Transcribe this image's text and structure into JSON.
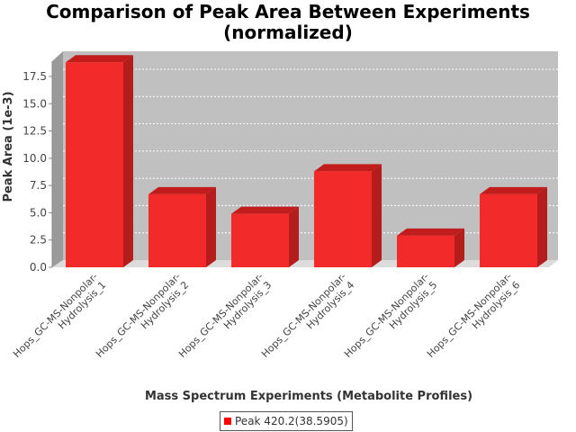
{
  "chart_data": {
    "type": "bar",
    "title_line1": "Comparison of Peak Area Between Experiments",
    "title_line2": "(normalized)",
    "xlabel": "Mass Spectrum Experiments (Metabolite Profiles)",
    "ylabel": "Peak Area (1e-3)",
    "categories": [
      [
        "Hops_GC-MS-Nonpolar-",
        "Hydrolysis_1"
      ],
      [
        "Hops_GC-MS-Nonpolar-",
        "Hydrolysis_2"
      ],
      [
        "Hops_GC-MS-Nonpolar-",
        "Hydrolysis_3"
      ],
      [
        "Hops_GC-MS-Nonpolar-",
        "Hydrolysis_4"
      ],
      [
        "Hops_GC-MS-Nonpolar-",
        "Hydrolysis_5"
      ],
      [
        "Hops_GC-MS-Nonpolar-",
        "Hydrolysis_6"
      ]
    ],
    "series": [
      {
        "name": "Peak 420.2(38.5905)",
        "values": [
          18.8,
          6.7,
          4.9,
          8.8,
          2.9,
          6.7
        ]
      }
    ],
    "ylim": [
      0,
      18.9
    ],
    "yticks": [
      "0.0",
      "2.5",
      "5.0",
      "7.5",
      "10.0",
      "12.5",
      "15.0",
      "17.5"
    ],
    "colors": {
      "bar_front": "#f32a2a",
      "bar_top": "#c21d1d",
      "bar_side": "#b51c1c",
      "plot_bg": "#c0c0c0",
      "floor": "#dcdcdc"
    },
    "grid": true,
    "legend_position": "bottom"
  }
}
